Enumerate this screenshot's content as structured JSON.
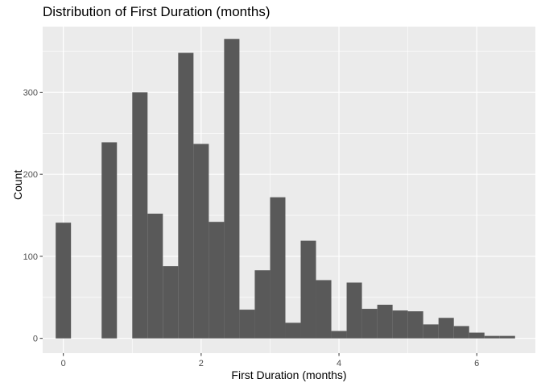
{
  "chart_data": {
    "type": "bar",
    "title": "Distribution of First Duration (months)",
    "xlabel": "First Duration (months)",
    "ylabel": "Count",
    "xlim": [
      -0.3,
      6.85
    ],
    "ylim": [
      -18,
      380
    ],
    "x_ticks": [
      0,
      2,
      4,
      6
    ],
    "y_ticks": [
      0,
      100,
      200,
      300
    ],
    "grid": true,
    "bin_width": 0.2222,
    "bins": [
      {
        "x": 0.0,
        "count": 141
      },
      {
        "x": 0.2222,
        "count": 0
      },
      {
        "x": 0.4444,
        "count": 0
      },
      {
        "x": 0.6667,
        "count": 239
      },
      {
        "x": 0.8889,
        "count": 0
      },
      {
        "x": 1.1111,
        "count": 300
      },
      {
        "x": 1.3333,
        "count": 152
      },
      {
        "x": 1.5556,
        "count": 88
      },
      {
        "x": 1.7778,
        "count": 348
      },
      {
        "x": 2.0,
        "count": 237
      },
      {
        "x": 2.2222,
        "count": 142
      },
      {
        "x": 2.4444,
        "count": 365
      },
      {
        "x": 2.6667,
        "count": 35
      },
      {
        "x": 2.8889,
        "count": 83
      },
      {
        "x": 3.1111,
        "count": 172
      },
      {
        "x": 3.3333,
        "count": 19
      },
      {
        "x": 3.5556,
        "count": 119
      },
      {
        "x": 3.7778,
        "count": 71
      },
      {
        "x": 4.0,
        "count": 9
      },
      {
        "x": 4.2222,
        "count": 68
      },
      {
        "x": 4.4444,
        "count": 36
      },
      {
        "x": 4.6667,
        "count": 41
      },
      {
        "x": 4.8889,
        "count": 34
      },
      {
        "x": 5.1111,
        "count": 33
      },
      {
        "x": 5.3333,
        "count": 17
      },
      {
        "x": 5.5556,
        "count": 25
      },
      {
        "x": 5.7778,
        "count": 15
      },
      {
        "x": 6.0,
        "count": 7
      },
      {
        "x": 6.2222,
        "count": 3
      },
      {
        "x": 6.4444,
        "count": 3
      }
    ],
    "colors": {
      "panel_bg": "#ebebeb",
      "grid_major": "#ffffff",
      "bar_fill": "#595959",
      "tick_text": "#4d4d4d",
      "tick_line": "#333333"
    }
  }
}
